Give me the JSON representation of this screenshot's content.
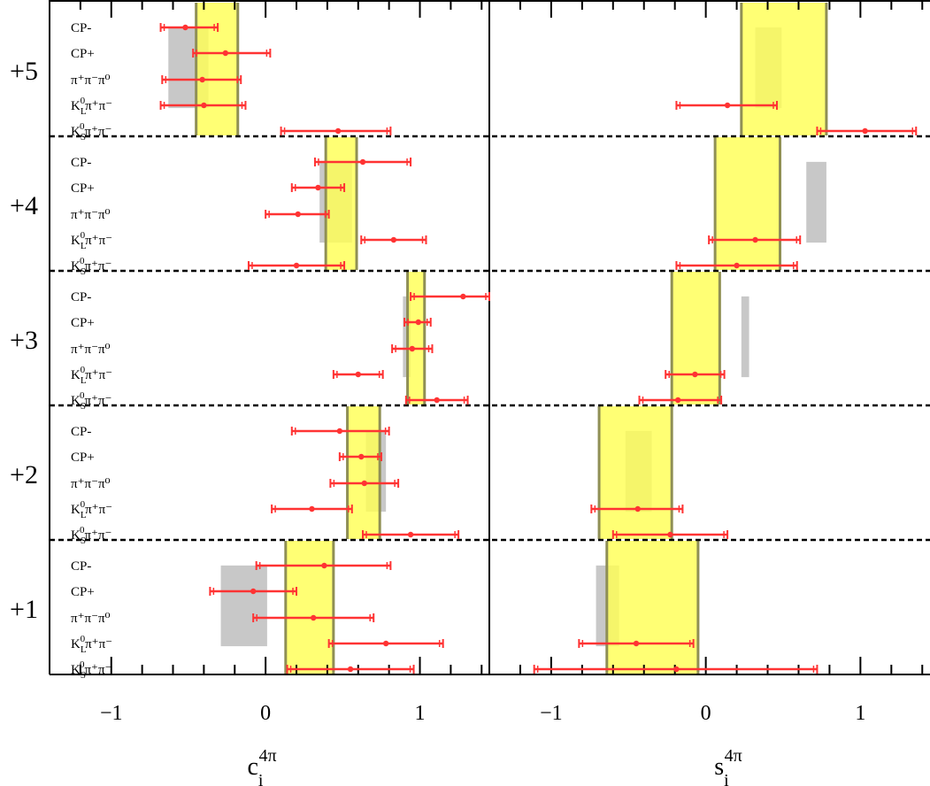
{
  "chart_data": {
    "type": "scatter",
    "x_axes": [
      {
        "label": "c",
        "label_sub": "i",
        "label_sup": "4π",
        "range": [
          -1.4,
          1.45
        ],
        "ticks": [
          {
            "value": -1,
            "label": "−1"
          },
          {
            "value": 0,
            "label": "0"
          },
          {
            "value": 1,
            "label": "1"
          }
        ]
      },
      {
        "label": "s",
        "label_sub": "i",
        "label_sup": "4π",
        "range": [
          -1.4,
          1.45
        ],
        "ticks": [
          {
            "value": -1,
            "label": "−1"
          },
          {
            "value": 0,
            "label": "0"
          },
          {
            "value": 1,
            "label": "1"
          }
        ]
      }
    ],
    "bins": [
      {
        "label": "+5",
        "channels": [
          {
            "main": "CP-"
          },
          {
            "main": "CP+"
          },
          {
            "main": "π⁺π⁻π⁰"
          },
          {
            "main": "K",
            "sub": "L",
            "sup": "0",
            "tail": "π⁺π⁻"
          },
          {
            "main": "K",
            "sub": "S",
            "sup": "0",
            "tail": "π⁺π⁻"
          }
        ],
        "c": {
          "band": [
            -0.45,
            -0.18
          ],
          "gray": [
            -0.63,
            -0.37
          ],
          "points": [
            {
              "value": -0.52,
              "lo": -0.68,
              "hi": -0.31
            },
            {
              "value": -0.26,
              "lo": -0.47,
              "hi": 0.03
            },
            {
              "value": -0.41,
              "lo": -0.67,
              "hi": -0.16
            },
            {
              "value": -0.4,
              "lo": -0.68,
              "hi": -0.13
            },
            {
              "value": 0.47,
              "lo": 0.1,
              "hi": 0.81
            }
          ]
        },
        "s": {
          "band": [
            0.23,
            0.78
          ],
          "gray": [
            0.32,
            0.49
          ],
          "points": [
            null,
            null,
            null,
            {
              "value": 0.14,
              "lo": -0.19,
              "hi": 0.46
            },
            {
              "value": 1.03,
              "lo": 0.72,
              "hi": 1.36
            }
          ]
        }
      },
      {
        "label": "+4",
        "channels": [
          {
            "main": "CP-"
          },
          {
            "main": "CP+"
          },
          {
            "main": "π⁺π⁻π⁰"
          },
          {
            "main": "K",
            "sub": "L",
            "sup": "0",
            "tail": "π⁺π⁻"
          },
          {
            "main": "K",
            "sub": "S",
            "sup": "0",
            "tail": "π⁺π⁻"
          }
        ],
        "c": {
          "band": [
            0.39,
            0.59
          ],
          "gray": [
            0.35,
            0.56
          ],
          "points": [
            {
              "value": 0.63,
              "lo": 0.32,
              "hi": 0.94
            },
            {
              "value": 0.34,
              "lo": 0.17,
              "hi": 0.51
            },
            {
              "value": 0.21,
              "lo": 0.0,
              "hi": 0.41
            },
            {
              "value": 0.83,
              "lo": 0.62,
              "hi": 1.04
            },
            {
              "value": 0.2,
              "lo": -0.11,
              "hi": 0.51
            }
          ]
        },
        "s": {
          "band": [
            0.06,
            0.48
          ],
          "gray": [
            0.65,
            0.78
          ],
          "points": [
            null,
            null,
            null,
            {
              "value": 0.32,
              "lo": 0.02,
              "hi": 0.61
            },
            {
              "value": 0.2,
              "lo": -0.19,
              "hi": 0.59
            }
          ]
        }
      },
      {
        "label": "+3",
        "channels": [
          {
            "main": "CP-"
          },
          {
            "main": "CP+"
          },
          {
            "main": "π⁺π⁻π⁰"
          },
          {
            "main": "K",
            "sub": "L",
            "sup": "0",
            "tail": "π⁺π⁻"
          },
          {
            "main": "K",
            "sub": "S",
            "sup": "0",
            "tail": "π⁺π⁻"
          }
        ],
        "c": {
          "band": [
            0.92,
            1.03
          ],
          "gray": [
            0.89,
            0.94
          ],
          "points": [
            {
              "value": 1.28,
              "lo": 0.94,
              "hi": 1.45
            },
            {
              "value": 0.99,
              "lo": 0.9,
              "hi": 1.07
            },
            {
              "value": 0.95,
              "lo": 0.82,
              "hi": 1.08
            },
            {
              "value": 0.6,
              "lo": 0.44,
              "hi": 0.76
            },
            {
              "value": 1.11,
              "lo": 0.91,
              "hi": 1.31
            }
          ]
        },
        "s": {
          "band": [
            -0.22,
            0.09
          ],
          "gray": [
            0.23,
            0.28
          ],
          "points": [
            null,
            null,
            null,
            {
              "value": -0.07,
              "lo": -0.26,
              "hi": 0.12
            },
            {
              "value": -0.18,
              "lo": -0.43,
              "hi": 0.1
            }
          ]
        }
      },
      {
        "label": "+2",
        "channels": [
          {
            "main": "CP-"
          },
          {
            "main": "CP+"
          },
          {
            "main": "π⁺π⁻π⁰"
          },
          {
            "main": "K",
            "sub": "L",
            "sup": "0",
            "tail": "π⁺π⁻"
          },
          {
            "main": "K",
            "sub": "S",
            "sup": "0",
            "tail": "π⁺π⁻"
          }
        ],
        "c": {
          "band": [
            0.53,
            0.74
          ],
          "gray": [
            0.65,
            0.78
          ],
          "points": [
            {
              "value": 0.48,
              "lo": 0.17,
              "hi": 0.8
            },
            {
              "value": 0.62,
              "lo": 0.48,
              "hi": 0.75
            },
            {
              "value": 0.64,
              "lo": 0.42,
              "hi": 0.86
            },
            {
              "value": 0.3,
              "lo": 0.04,
              "hi": 0.56
            },
            {
              "value": 0.94,
              "lo": 0.63,
              "hi": 1.25
            }
          ]
        },
        "s": {
          "band": [
            -0.69,
            -0.22
          ],
          "gray": [
            -0.52,
            -0.35
          ],
          "points": [
            null,
            null,
            null,
            {
              "value": -0.44,
              "lo": -0.74,
              "hi": -0.15
            },
            {
              "value": -0.23,
              "lo": -0.6,
              "hi": 0.14
            }
          ]
        }
      },
      {
        "label": "+1",
        "channels": [
          {
            "main": "CP-"
          },
          {
            "main": "CP+"
          },
          {
            "main": "π⁺π⁻π⁰"
          },
          {
            "main": "K",
            "sub": "L",
            "sup": "0",
            "tail": "π⁺π⁻"
          },
          {
            "main": "K",
            "sub": "S",
            "sup": "0",
            "tail": "π⁺π⁻"
          }
        ],
        "c": {
          "band": [
            0.13,
            0.44
          ],
          "gray": [
            -0.29,
            0.01
          ],
          "points": [
            {
              "value": 0.38,
              "lo": -0.06,
              "hi": 0.81
            },
            {
              "value": -0.08,
              "lo": -0.36,
              "hi": 0.2
            },
            {
              "value": 0.31,
              "lo": -0.08,
              "hi": 0.7
            },
            {
              "value": 0.78,
              "lo": 0.41,
              "hi": 1.15
            },
            {
              "value": 0.55,
              "lo": 0.14,
              "hi": 0.96
            }
          ]
        },
        "s": {
          "band": [
            -0.64,
            -0.05
          ],
          "gray": [
            -0.71,
            -0.56
          ],
          "points": [
            null,
            null,
            null,
            {
              "value": -0.45,
              "lo": -0.82,
              "hi": -0.08
            },
            {
              "value": -0.19,
              "lo": -1.11,
              "hi": 0.72
            }
          ]
        }
      }
    ],
    "colors": {
      "band": "#ffff55",
      "band_edge": "#8f8f55",
      "gray": "#c8c8c8",
      "point": "#ff3333"
    },
    "grid": false
  }
}
